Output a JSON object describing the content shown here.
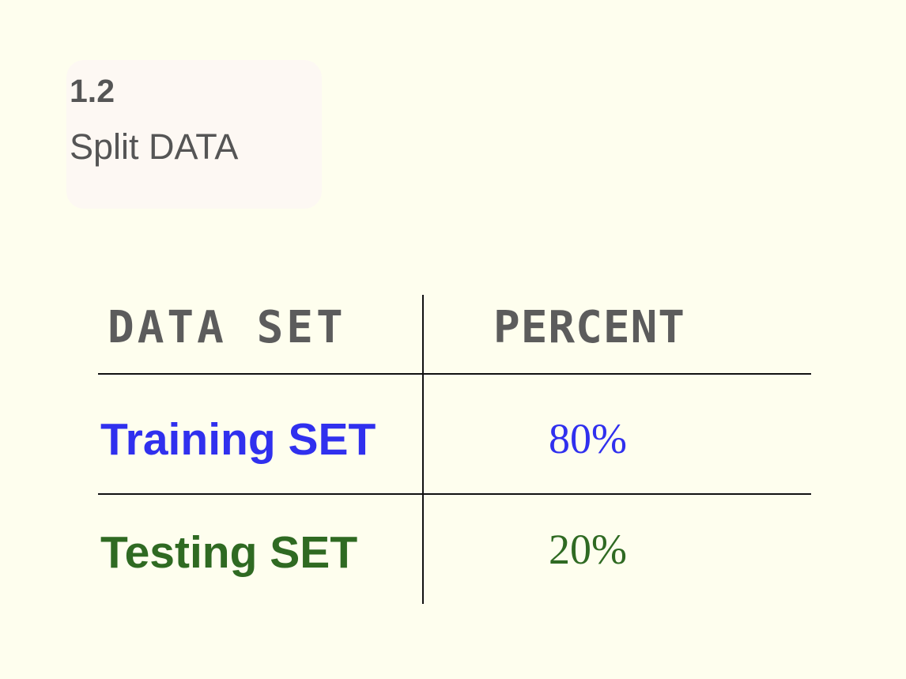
{
  "section": {
    "number": "1.2",
    "title": "Split DATA"
  },
  "table": {
    "headers": {
      "data_set": "DATA SET",
      "percent": "PERCENT"
    },
    "rows": [
      {
        "name": "Training SET",
        "percent": "80%",
        "color": "#3030ee"
      },
      {
        "name": "Testing SET",
        "percent": "20%",
        "color": "#2f6a22"
      }
    ]
  },
  "colors": {
    "background": "#fefeee",
    "card": "#fdf8f3",
    "header_text": "#5c5c5c",
    "section_text": "#555555"
  }
}
